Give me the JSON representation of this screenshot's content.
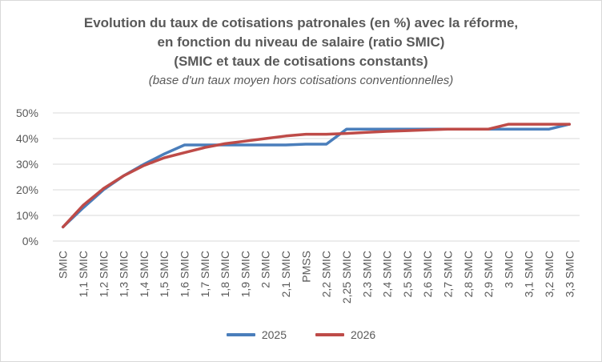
{
  "chart_data": {
    "type": "line",
    "title_lines": [
      "Evolution du taux de cotisations patronales (en %) avec la réforme,",
      "en fonction du niveau de salaire (ratio SMIC)",
      "(SMIC et taux de cotisations constants)"
    ],
    "subtitle": "(base d'un taux moyen hors cotisations conventionnelles)",
    "categories": [
      "SMIC",
      "1,1 SMIC",
      "1,2 SMIC",
      "1,3 SMIC",
      "1,4 SMIC",
      "1,5 SMIC",
      "1,6 SMIC",
      "1,7 SMIC",
      "1,8 SMIC",
      "1,9 SMIC",
      "2 SMIC",
      "2,1 SMIC",
      "PMSS",
      "2,2 SMIC",
      "2,25 SMIC",
      "2,3 SMIC",
      "2,4 SMIC",
      "2,5 SMIC",
      "2,6 SMIC",
      "2,7 SMIC",
      "2,8 SMIC",
      "2,9 SMIC",
      "3 SMIC",
      "3,1 SMIC",
      "3,2 SMIC",
      "3,3 SMIC"
    ],
    "y_ticks": [
      "0%",
      "10%",
      "20%",
      "30%",
      "40%",
      "50%"
    ],
    "ylim": [
      0,
      50
    ],
    "series": [
      {
        "name": "2025",
        "color": "#4a7ebb",
        "values": [
          5.5,
          13,
          20,
          25.5,
          30,
          34,
          37.5,
          37.5,
          37.5,
          37.5,
          37.5,
          37.5,
          37.8,
          37.8,
          43.7,
          43.7,
          43.7,
          43.7,
          43.7,
          43.7,
          43.7,
          43.7,
          43.7,
          43.7,
          43.7,
          45.6
        ]
      },
      {
        "name": "2026",
        "color": "#be4b48",
        "values": [
          5.5,
          14,
          20.5,
          25.5,
          29.5,
          32.5,
          34.5,
          36.5,
          38,
          39,
          40,
          41,
          41.7,
          41.7,
          42,
          42.4,
          42.8,
          43.1,
          43.4,
          43.7,
          43.7,
          43.7,
          45.6,
          45.6,
          45.6,
          45.6
        ]
      }
    ],
    "grid": true,
    "legend_position": "bottom"
  }
}
